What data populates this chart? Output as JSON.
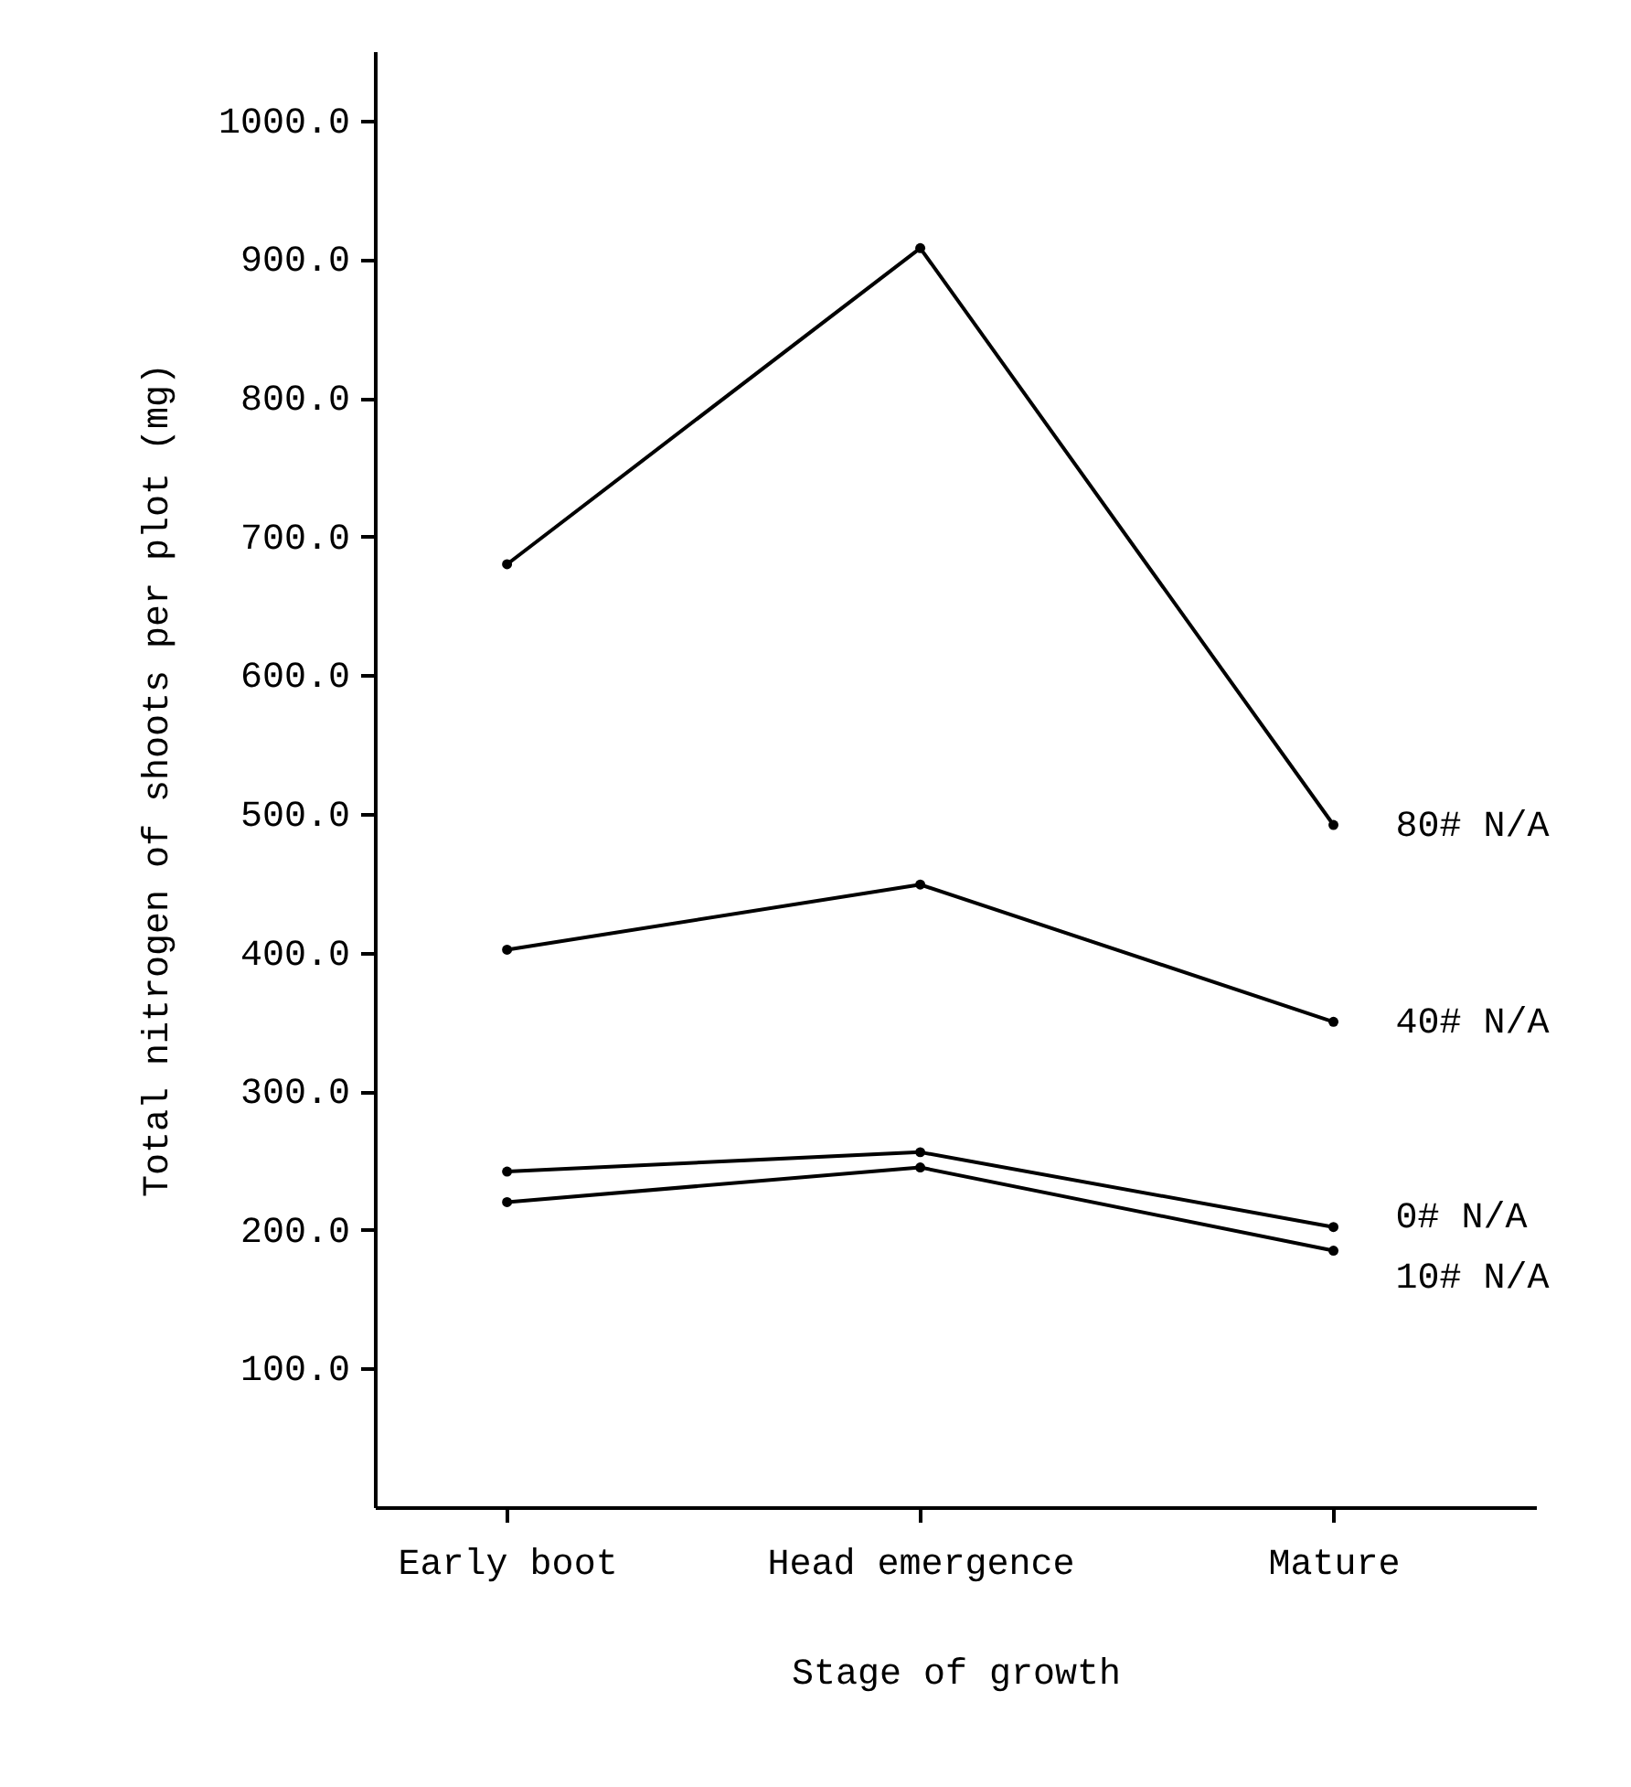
{
  "chart_data": {
    "type": "line",
    "xlabel": "Stage of growth",
    "ylabel": "Total nitrogen of shoots per plot (mg)",
    "categories": [
      "Early boot",
      "Head emergence",
      "Mature"
    ],
    "series": [
      {
        "name": "80# N/A",
        "color": "#000000",
        "values": [
          680,
          908,
          492
        ]
      },
      {
        "name": "40# N/A",
        "color": "#000000",
        "values": [
          402,
          449,
          350
        ]
      },
      {
        "name": "0# N/A",
        "color": "#000000",
        "values": [
          242,
          256,
          202
        ]
      },
      {
        "name": "10# N/A",
        "color": "#000000",
        "values": [
          220,
          245,
          185
        ]
      }
    ],
    "ylim": [
      0,
      1050
    ],
    "yticks": [
      {
        "value": 100,
        "label": "100.0"
      },
      {
        "value": 200,
        "label": "200.0"
      },
      {
        "value": 300,
        "label": "300.0"
      },
      {
        "value": 400,
        "label": "400.0"
      },
      {
        "value": 500,
        "label": "500.0"
      },
      {
        "value": 600,
        "label": "600.0"
      },
      {
        "value": 700,
        "label": "700.0"
      },
      {
        "value": 800,
        "label": "800.0"
      },
      {
        "value": 900,
        "label": "900.0"
      },
      {
        "value": 1000,
        "label": "1000.0"
      }
    ],
    "grid": false,
    "legend": false,
    "marker": "circle",
    "line_style": "solid"
  }
}
